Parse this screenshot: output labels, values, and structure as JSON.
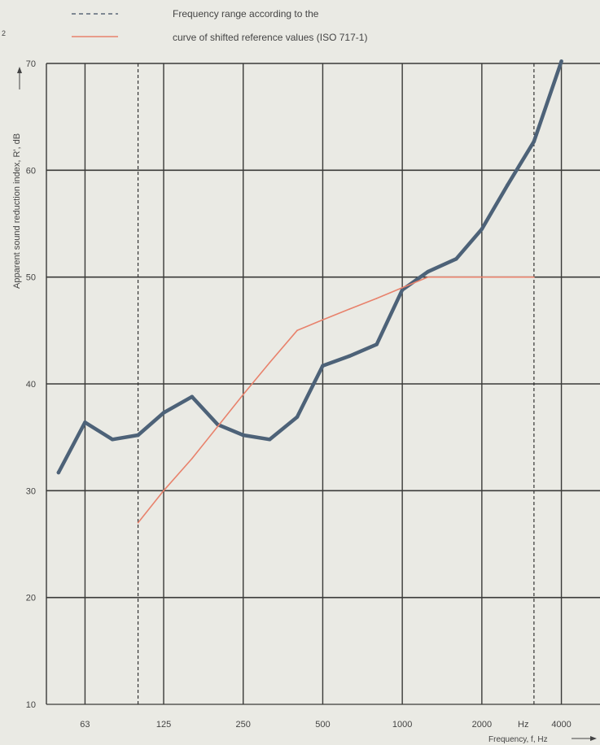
{
  "legend": {
    "items": [
      {
        "label": "Frequency range according to the",
        "style": "dashed",
        "color": "#5a6878"
      },
      {
        "label": "curve of shifted reference values (ISO 717-1)",
        "style": "solid",
        "color": "#e8826c"
      }
    ],
    "corner_mark": "2"
  },
  "chart_data": {
    "type": "line",
    "xscale": "log",
    "xlim": [
      45,
      5600
    ],
    "ylim": [
      10,
      70
    ],
    "yticks": [
      10,
      20,
      30,
      40,
      50,
      60,
      70
    ],
    "xticks": [
      63,
      125,
      250,
      500,
      1000,
      2000,
      4000
    ],
    "xtick_labels": [
      "63",
      "125",
      "250",
      "500",
      "1000",
      "2000",
      "4000"
    ],
    "unit_label": "Hz",
    "xlabel": "Frequency, f, Hz",
    "ylabel": "Apparent sound reduction index, R', dB",
    "grid": true,
    "frequency_range": [
      100,
      3150
    ],
    "colors": {
      "measured": "#4d6278",
      "reference": "#e8826c",
      "grid": "#3a3a38",
      "background": "#eaeae4"
    },
    "series": [
      {
        "key": "measured",
        "x": [
          50,
          63,
          80,
          100,
          125,
          160,
          200,
          250,
          315,
          400,
          500,
          630,
          800,
          1000,
          1250,
          1600,
          2000,
          2500,
          3150,
          4000
        ],
        "values": [
          31.7,
          36.4,
          34.8,
          35.2,
          37.3,
          38.8,
          36.2,
          35.2,
          34.8,
          36.9,
          41.7,
          42.6,
          43.7,
          48.8,
          50.5,
          51.7,
          54.5,
          58.6,
          62.7,
          70.2
        ]
      },
      {
        "key": "reference",
        "x": [
          100,
          125,
          160,
          200,
          250,
          315,
          400,
          500,
          630,
          800,
          1000,
          1250,
          1600,
          2000,
          2500,
          3150
        ],
        "values": [
          27,
          30,
          33,
          36,
          39,
          42,
          45,
          46,
          47,
          48,
          49,
          50,
          50,
          50,
          50,
          50
        ]
      }
    ]
  }
}
